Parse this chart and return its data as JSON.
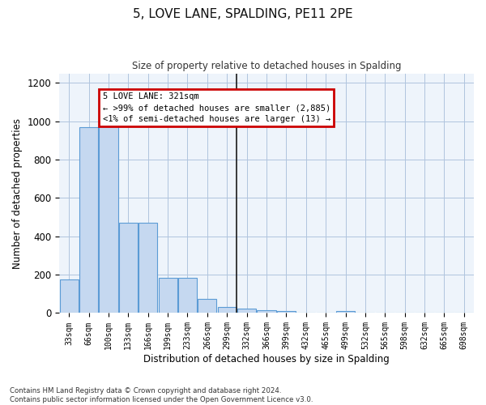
{
  "title": "5, LOVE LANE, SPALDING, PE11 2PE",
  "subtitle": "Size of property relative to detached houses in Spalding",
  "xlabel": "Distribution of detached houses by size in Spalding",
  "ylabel": "Number of detached properties",
  "footnote1": "Contains HM Land Registry data © Crown copyright and database right 2024.",
  "footnote2": "Contains public sector information licensed under the Open Government Licence v3.0.",
  "bar_color": "#c5d8f0",
  "bar_edge_color": "#5b9bd5",
  "grid_color": "#b0c4de",
  "bg_color": "#eef4fb",
  "vline_color": "#1a1a1a",
  "annotation_box_color": "#cc0000",
  "annotation_line1": "5 LOVE LANE: 321sqm",
  "annotation_line2": "← >99% of detached houses are smaller (2,885)",
  "annotation_line3": "<1% of semi-detached houses are larger (13) →",
  "property_sqm": 321,
  "vline_bin_index": 9,
  "categories": [
    "33sqm",
    "66sqm",
    "100sqm",
    "133sqm",
    "166sqm",
    "199sqm",
    "233sqm",
    "266sqm",
    "299sqm",
    "332sqm",
    "366sqm",
    "399sqm",
    "432sqm",
    "465sqm",
    "499sqm",
    "532sqm",
    "565sqm",
    "598sqm",
    "632sqm",
    "665sqm",
    "698sqm"
  ],
  "values": [
    175,
    970,
    995,
    470,
    470,
    185,
    185,
    75,
    30,
    25,
    15,
    10,
    0,
    0,
    10,
    0,
    0,
    0,
    0,
    0,
    0
  ],
  "ylim": [
    0,
    1250
  ],
  "yticks": [
    0,
    200,
    400,
    600,
    800,
    1000,
    1200
  ],
  "bin_width": 33
}
